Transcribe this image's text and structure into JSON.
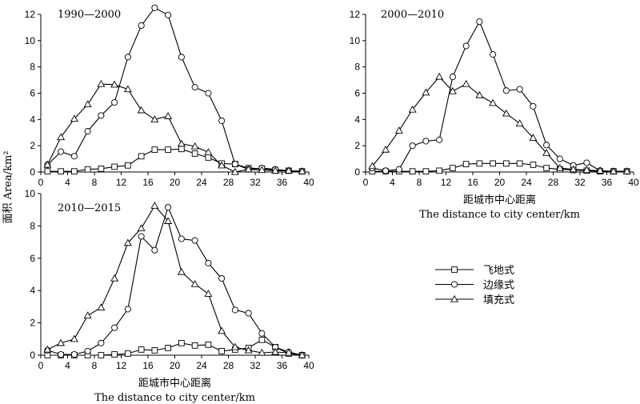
{
  "y_axis_label": "面积 Area/km²",
  "legend": {
    "placement": "right-middle",
    "entries": [
      {
        "label": "飞地式",
        "marker": "square"
      },
      {
        "label": "边缘式",
        "marker": "circle"
      },
      {
        "label": "填充式",
        "marker": "triangle"
      }
    ]
  },
  "chart_data": [
    {
      "type": "line",
      "title": "1990—2000",
      "xlabel": "",
      "xlabel_en": "",
      "xlim": [
        0,
        40
      ],
      "ylim": [
        0,
        12
      ],
      "x_ticks": [
        0,
        4,
        8,
        12,
        16,
        20,
        24,
        28,
        32,
        36,
        40
      ],
      "y_ticks": [
        0,
        2,
        4,
        6,
        8,
        10,
        12
      ],
      "x": [
        1,
        3,
        5,
        7,
        9,
        11,
        13,
        15,
        17,
        19,
        21,
        23,
        25,
        27,
        29,
        31,
        33,
        35,
        37,
        39
      ],
      "series": [
        {
          "name": "飞地式",
          "marker": "square",
          "values": [
            0.05,
            0.05,
            0.05,
            0.2,
            0.25,
            0.4,
            0.5,
            1.2,
            1.7,
            1.7,
            1.75,
            1.4,
            1.1,
            0.65,
            0.6,
            0.3,
            0.25,
            0.15,
            0.1,
            0.05
          ]
        },
        {
          "name": "边缘式",
          "marker": "circle",
          "values": [
            0.55,
            1.55,
            1.2,
            3.1,
            4.3,
            5.3,
            8.75,
            11.15,
            12.5,
            11.95,
            8.75,
            6.45,
            6.0,
            3.9,
            0.6,
            0.2,
            0.3,
            0.2,
            0.1,
            0.05
          ]
        },
        {
          "name": "填充式",
          "marker": "triangle",
          "values": [
            0.55,
            2.65,
            4.05,
            5.15,
            6.7,
            6.65,
            6.3,
            4.7,
            4.0,
            4.25,
            2.15,
            1.95,
            1.5,
            0.5,
            0.0,
            0.2,
            0.15,
            0.1,
            0.1,
            0.05
          ]
        }
      ]
    },
    {
      "type": "line",
      "title": "2000—2010",
      "xlabel": "距城市中心距离",
      "xlabel_en": "The distance to city center/km",
      "xlim": [
        0,
        40
      ],
      "ylim": [
        0,
        12
      ],
      "x_ticks": [
        0,
        4,
        8,
        12,
        16,
        20,
        24,
        28,
        32,
        36,
        40
      ],
      "y_ticks": [
        0,
        2,
        4,
        6,
        8,
        10,
        12
      ],
      "x": [
        1,
        3,
        5,
        7,
        9,
        11,
        13,
        15,
        17,
        19,
        21,
        23,
        25,
        27,
        29,
        31,
        33,
        35,
        37,
        39
      ],
      "series": [
        {
          "name": "飞地式",
          "marker": "square",
          "values": [
            0.05,
            0.05,
            0.05,
            0.05,
            0.05,
            0.1,
            0.3,
            0.6,
            0.65,
            0.65,
            0.65,
            0.65,
            0.55,
            0.3,
            0.2,
            0.15,
            0.1,
            0.05,
            0.05,
            0.05
          ]
        },
        {
          "name": "边缘式",
          "marker": "circle",
          "values": [
            0.3,
            0.1,
            0.2,
            2.0,
            2.35,
            2.45,
            7.25,
            9.6,
            11.45,
            8.95,
            6.2,
            6.3,
            5.0,
            2.05,
            1.0,
            0.5,
            0.7,
            0.1,
            0.05,
            0.05
          ]
        },
        {
          "name": "填充式",
          "marker": "triangle",
          "values": [
            0.45,
            1.7,
            3.15,
            4.75,
            6.05,
            7.25,
            6.15,
            6.7,
            5.85,
            5.25,
            4.45,
            3.7,
            2.6,
            1.45,
            0.3,
            0.2,
            0.15,
            0.1,
            0.05,
            0.05
          ]
        }
      ]
    },
    {
      "type": "line",
      "title": "2010—2015",
      "xlabel": "距城市中心距离",
      "xlabel_en": "The distance to city center/km",
      "xlim": [
        0,
        40
      ],
      "ylim": [
        0,
        10
      ],
      "x_ticks": [
        0,
        4,
        8,
        12,
        16,
        20,
        24,
        28,
        32,
        36,
        40
      ],
      "y_ticks": [
        0,
        2,
        4,
        6,
        8,
        10
      ],
      "x": [
        1,
        3,
        5,
        7,
        9,
        11,
        13,
        15,
        17,
        19,
        21,
        23,
        25,
        27,
        29,
        31,
        33,
        35,
        37,
        39
      ],
      "series": [
        {
          "name": "飞地式",
          "marker": "square",
          "values": [
            0.0,
            0.0,
            0.0,
            0.0,
            0.0,
            0.05,
            0.1,
            0.35,
            0.3,
            0.45,
            0.75,
            0.6,
            0.65,
            0.25,
            0.35,
            0.45,
            0.95,
            0.5,
            0.1,
            0.0
          ]
        },
        {
          "name": "边缘式",
          "marker": "circle",
          "values": [
            0.3,
            0.05,
            0.05,
            0.25,
            0.75,
            1.7,
            2.85,
            7.35,
            6.5,
            9.15,
            7.2,
            7.1,
            5.7,
            4.75,
            2.8,
            2.6,
            1.35,
            0.5,
            0.2,
            0.0
          ]
        },
        {
          "name": "填充式",
          "marker": "triangle",
          "values": [
            0.35,
            0.75,
            1.0,
            2.45,
            2.95,
            4.75,
            6.95,
            7.85,
            9.25,
            8.3,
            5.15,
            4.4,
            3.8,
            1.5,
            0.5,
            0.3,
            0.15,
            0.2,
            0.15,
            0.0
          ]
        }
      ]
    }
  ]
}
